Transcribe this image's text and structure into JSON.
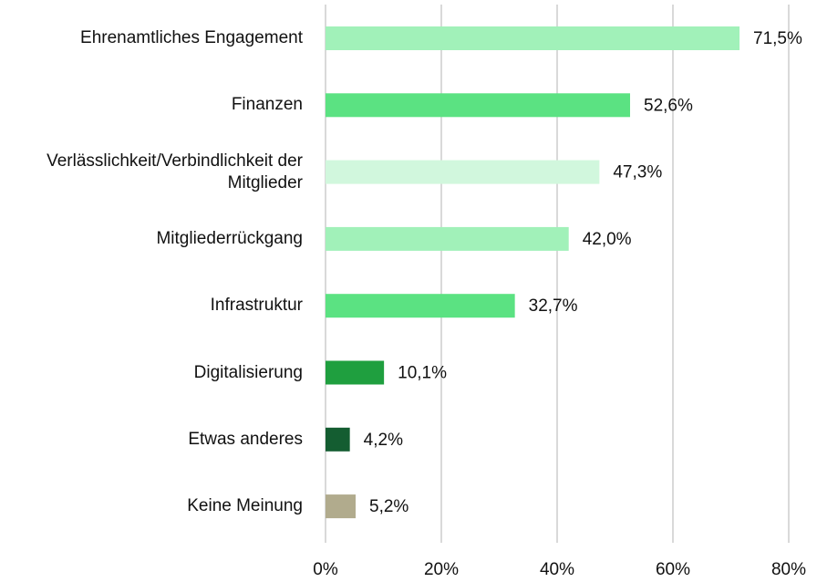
{
  "chart_data": {
    "type": "hbar",
    "categories": [
      "Ehrenamtliches Engagement",
      "Finanzen",
      "Verlässlichkeit/Verbindlichkeit der Mitglieder",
      "Mitgliederrückgang",
      "Infrastruktur",
      "Digitalisierung",
      "Etwas anderes",
      "Keine Meinung"
    ],
    "values": [
      71.5,
      52.6,
      47.3,
      42.0,
      32.7,
      10.1,
      4.2,
      5.2
    ],
    "value_labels": [
      "71,5%",
      "52,6%",
      "47,3%",
      "42,0%",
      "32,7%",
      "10,1%",
      "4,2%",
      "5,2%"
    ],
    "colors": [
      "#a1f1b9",
      "#5be282",
      "#d1f7dd",
      "#a1f1b9",
      "#5be282",
      "#1f9f3f",
      "#145d31",
      "#b1ab8d"
    ],
    "xlim": [
      0,
      80
    ],
    "xticks": [
      {
        "value": 0,
        "label": "0%"
      },
      {
        "value": 20,
        "label": "20%"
      },
      {
        "value": 40,
        "label": "40%"
      },
      {
        "value": 60,
        "label": "60%"
      },
      {
        "value": 80,
        "label": "80%"
      }
    ],
    "grid": true
  }
}
